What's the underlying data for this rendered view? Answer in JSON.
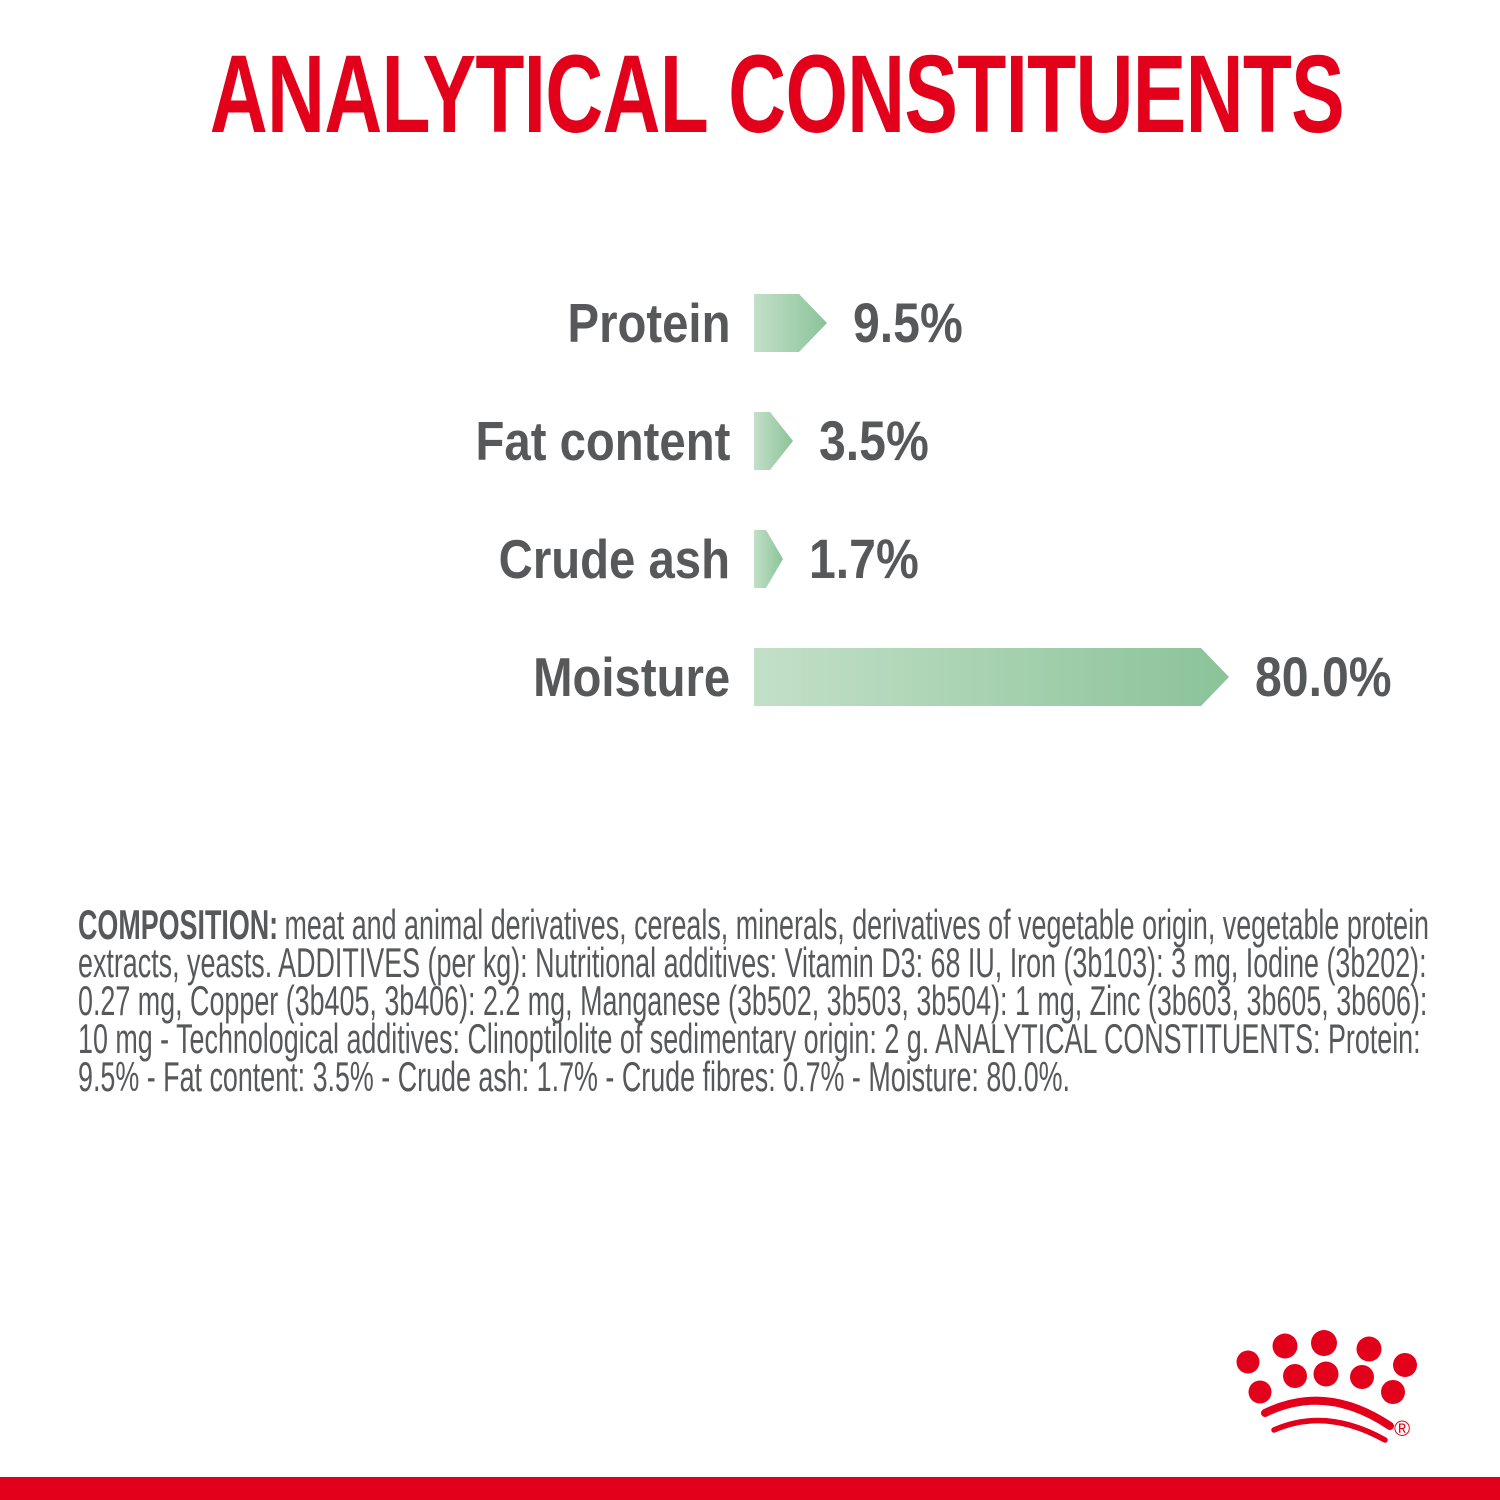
{
  "page": {
    "title": "ANALYTICAL CONSTITUENTS"
  },
  "chart_data": {
    "type": "bar",
    "orientation": "horizontal",
    "title": "ANALYTICAL CONSTITUENTS",
    "categories": [
      "Protein",
      "Fat content",
      "Crude ash",
      "Moisture"
    ],
    "values": [
      9.5,
      3.5,
      1.7,
      80.0
    ],
    "value_labels": [
      "9.5%",
      "3.5%",
      "1.7%",
      "80.0%"
    ],
    "unit": "%",
    "xlim": [
      0,
      80
    ],
    "grid": false,
    "legend": false
  },
  "composition": {
    "label": "COMPOSITION:",
    "text": "meat and animal derivatives, cereals, minerals, derivatives of vegetable origin, vegetable protein extracts, yeasts. ADDITIVES (per kg): Nutritional additives: Vitamin D3: 68 IU, Iron (3b103): 3 mg, Iodine (3b202): 0.27 mg, Copper (3b405, 3b406): 2.2 mg, Manganese (3b502, 3b503, 3b504): 1 mg, Zinc (3b603, 3b605, 3b606): 10 mg - Technological additives: Clinoptilolite of sedimentary origin: 2 g. ANALYTICAL CONSTITUENTS: Protein: 9.5% - Fat content: 3.5% - Crude ash: 1.7% - Crude fibres: 0.7% - Moisture: 80.0%."
  },
  "logo": {
    "name": "royal-canin-crown",
    "registered_mark": "®"
  },
  "colors": {
    "brand_red": "#e2001a",
    "text_gray": "#57585a",
    "bar_gradient_start": "#c3e0c8",
    "bar_gradient_end": "#8bc399"
  }
}
